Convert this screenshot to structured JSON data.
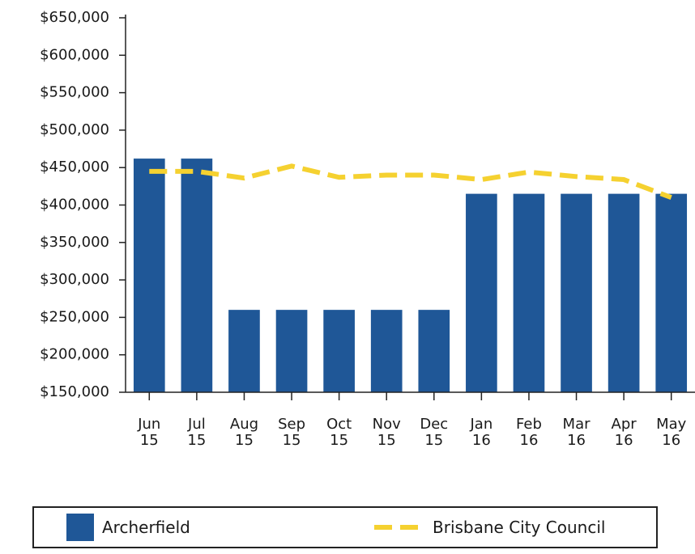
{
  "chart_data": {
    "type": "bar",
    "categories": [
      "Jun 15",
      "Jul 15",
      "Aug 15",
      "Sep 15",
      "Oct 15",
      "Nov 15",
      "Dec 15",
      "Jan 16",
      "Feb 16",
      "Mar 16",
      "Apr 16",
      "May 16"
    ],
    "series": [
      {
        "name": "Archerfield",
        "type": "bar",
        "color": "#1f5797",
        "values": [
          462000,
          462000,
          260000,
          260000,
          260000,
          260000,
          260000,
          415000,
          415000,
          415000,
          415000,
          415000
        ]
      },
      {
        "name": "Brisbane City Council",
        "type": "line",
        "color": "#f5d130",
        "values": [
          445000,
          445000,
          436000,
          452000,
          437000,
          440000,
          440000,
          434000,
          444000,
          438000,
          434000,
          410000
        ]
      }
    ],
    "ylim": [
      150000,
      650000
    ],
    "yticks": [
      {
        "value": 150000,
        "label": "$150,000"
      },
      {
        "value": 200000,
        "label": "$200,000"
      },
      {
        "value": 250000,
        "label": "$250,000"
      },
      {
        "value": 300000,
        "label": "$300,000"
      },
      {
        "value": 350000,
        "label": "$350,000"
      },
      {
        "value": 400000,
        "label": "$400,000"
      },
      {
        "value": 450000,
        "label": "$450,000"
      },
      {
        "value": 500000,
        "label": "$500,000"
      },
      {
        "value": 550000,
        "label": "$550,000"
      },
      {
        "value": 600000,
        "label": "$600,000"
      },
      {
        "value": 650000,
        "label": "$650,000"
      }
    ],
    "legend": "bottom"
  }
}
